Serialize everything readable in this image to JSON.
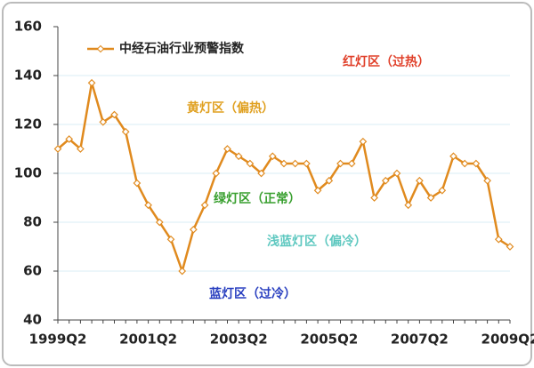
{
  "chart_data": {
    "type": "line",
    "categories": [
      "1999Q2",
      null,
      null,
      null,
      null,
      null,
      null,
      null,
      "2001Q2",
      null,
      null,
      null,
      null,
      null,
      null,
      null,
      "2003Q2",
      null,
      null,
      null,
      null,
      null,
      null,
      null,
      "2005Q2",
      null,
      null,
      null,
      null,
      null,
      null,
      null,
      "2007Q2",
      null,
      null,
      null,
      null,
      null,
      null,
      null,
      "2009Q2"
    ],
    "series": [
      {
        "name": "中经石油行业预警指数",
        "color": "#e08a1e",
        "values": [
          110,
          114,
          110,
          137,
          121,
          124,
          117,
          96,
          87,
          80,
          73,
          60,
          77,
          87,
          100,
          110,
          107,
          104,
          100,
          107,
          104,
          104,
          104,
          93,
          97,
          104,
          104,
          113,
          90,
          97,
          100,
          87,
          97,
          90,
          93,
          107,
          104,
          104,
          97,
          73,
          70
        ]
      }
    ],
    "ylim": [
      40,
      160
    ],
    "yticks": [
      40,
      60,
      80,
      100,
      120,
      140,
      160
    ],
    "grid": true,
    "annotations": [
      {
        "text": "红灯区（过热）",
        "color": "#e0402a"
      },
      {
        "text": "黄灯区（偏热）",
        "color": "#e0a020"
      },
      {
        "text": "绿灯区（正常）",
        "color": "#3aa030"
      },
      {
        "text": "浅蓝灯区（偏冷）",
        "color": "#5ec8c0"
      },
      {
        "text": "蓝灯区（过冷）",
        "color": "#2a40c0"
      }
    ]
  }
}
